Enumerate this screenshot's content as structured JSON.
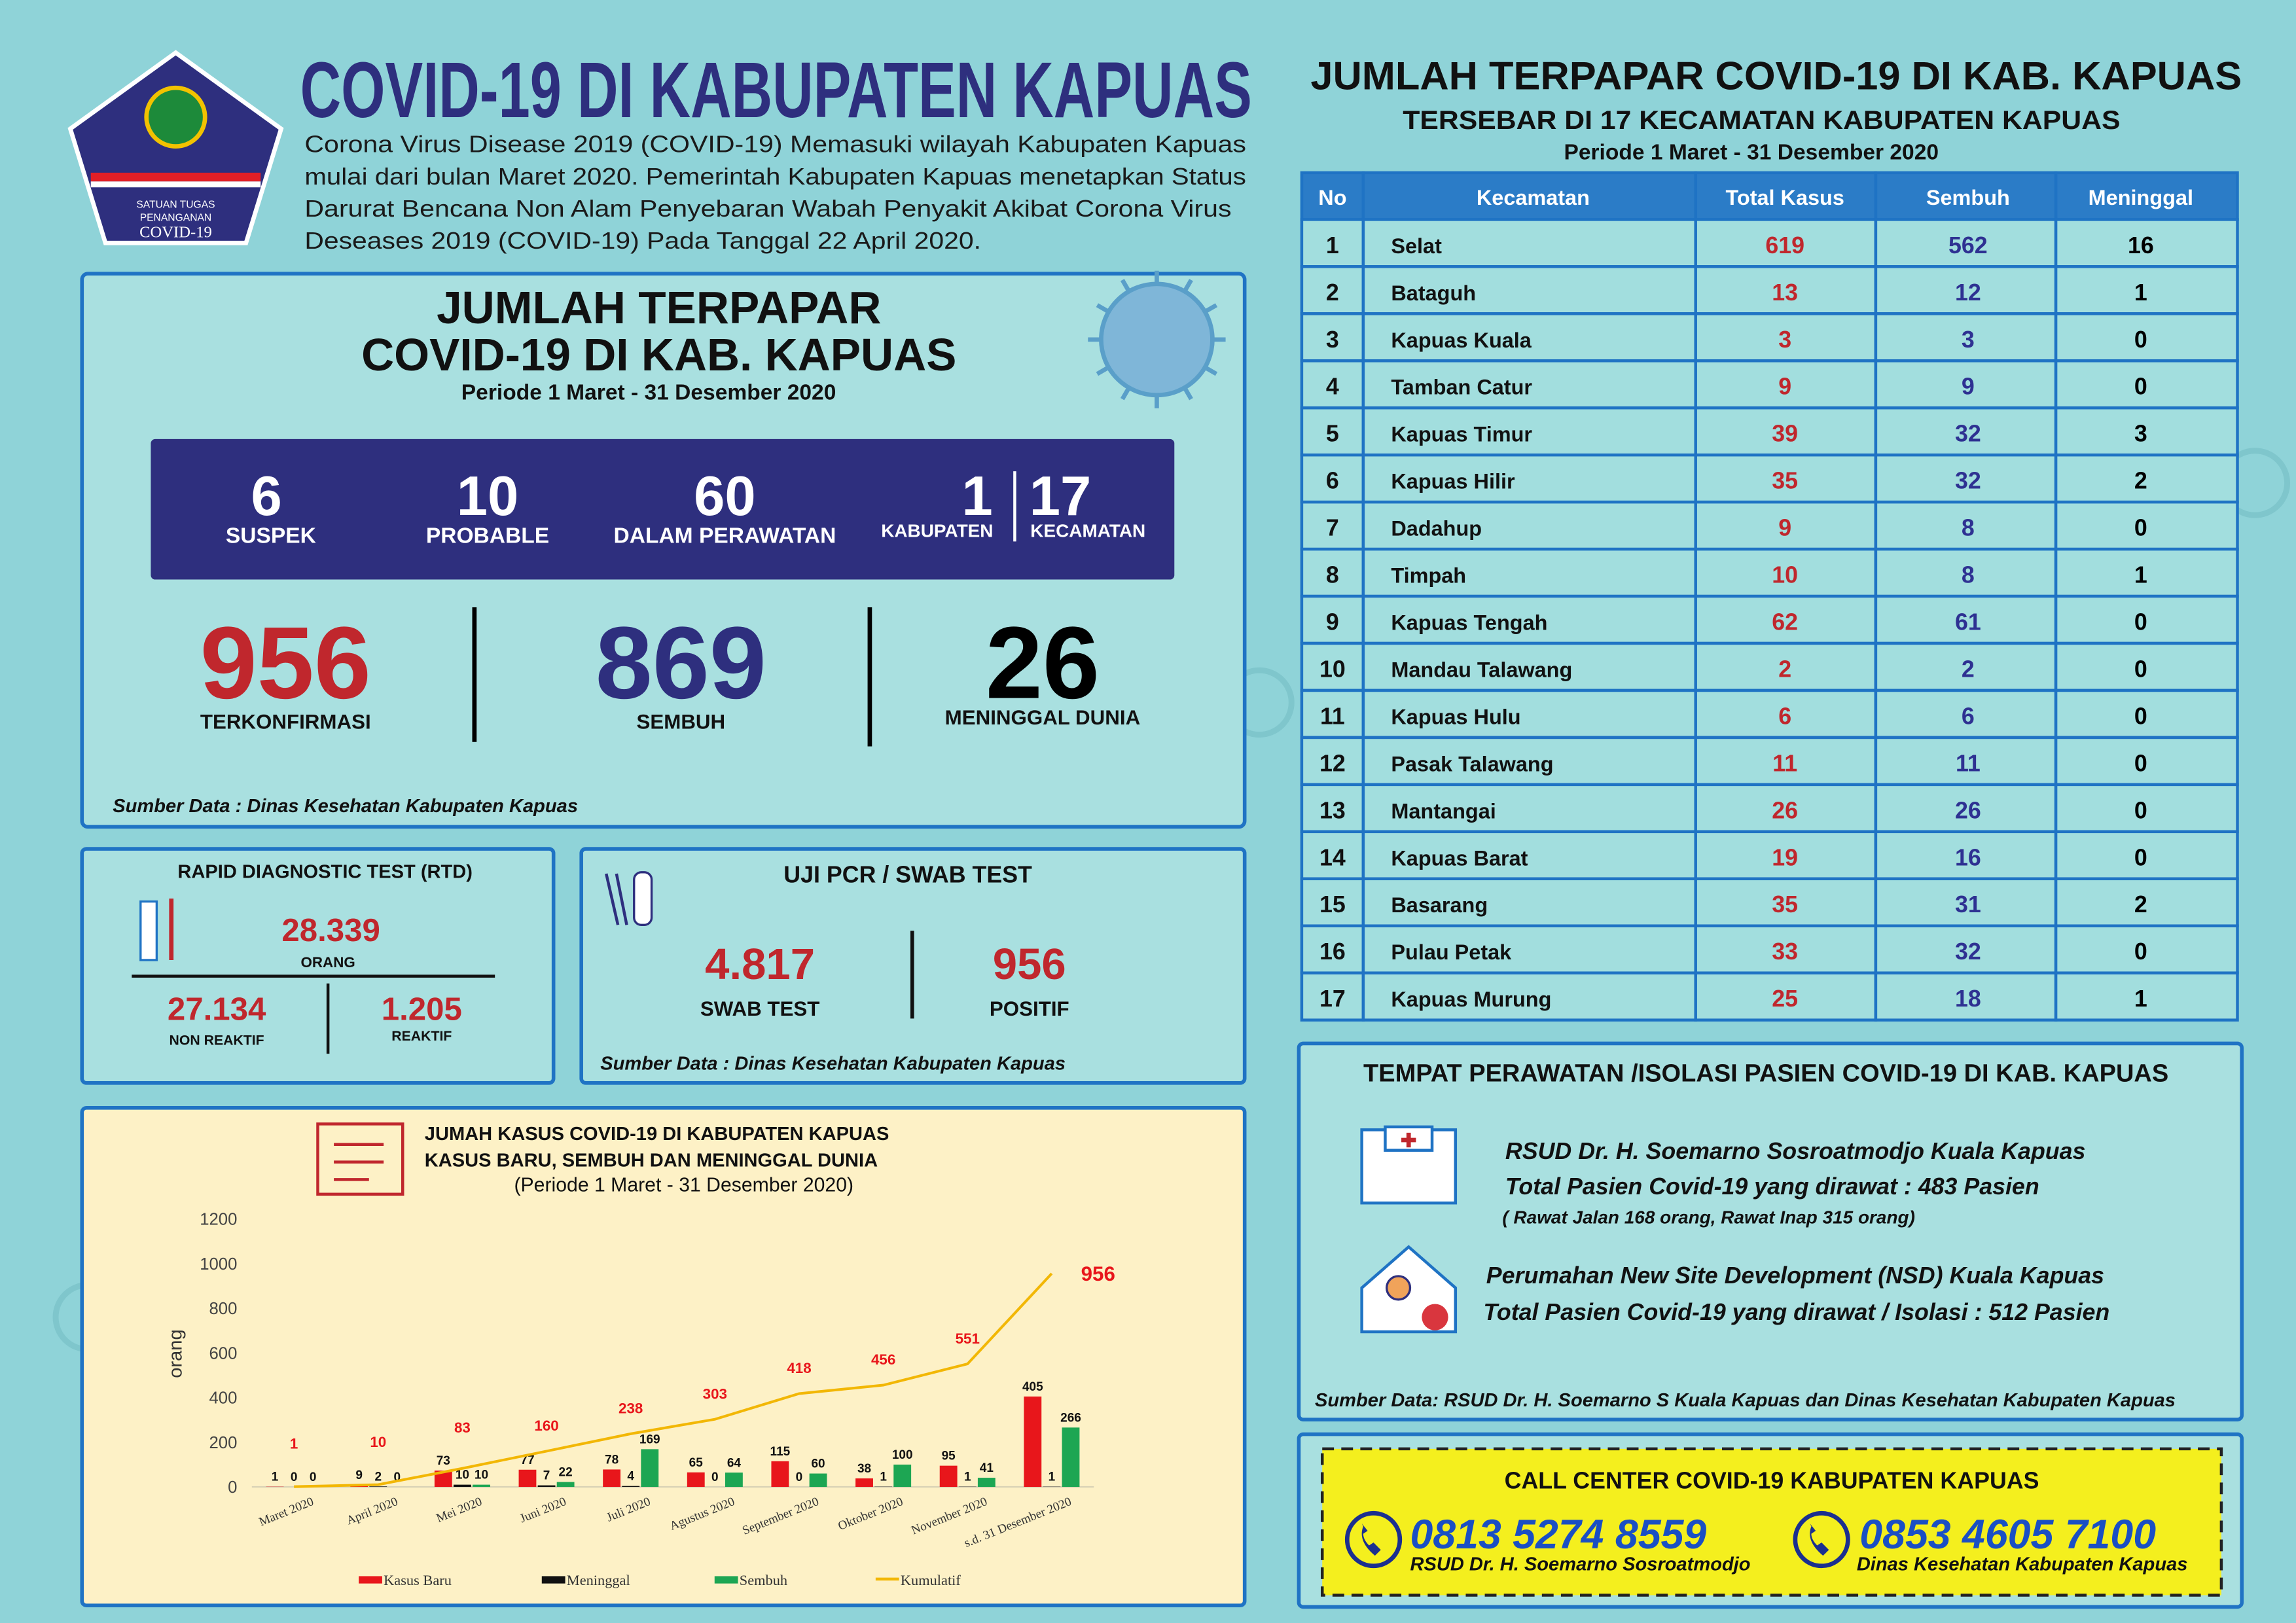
{
  "logo": {
    "lines": [
      "SATUAN TUGAS",
      "PENANGANAN",
      "COVID-19"
    ]
  },
  "header": {
    "title": "COVID-19 DI KABUPATEN KAPUAS",
    "intro": [
      "Corona Virus Disease 2019 (COVID-19) Memasuki wilayah Kabupaten Kapuas",
      "mulai dari bulan Maret 2020. Pemerintah Kabupaten Kapuas menetapkan Status",
      "Darurat Bencana Non Alam Penyebaran Wabah Penyakit Akibat Corona Virus",
      "Deseases 2019 (COVID-19) Pada Tanggal 22 April 2020."
    ]
  },
  "summary": {
    "title": [
      "JUMLAH TERPAPAR",
      "COVID-19 DI KAB. KAPUAS"
    ],
    "period": "Periode 1 Maret - 31 Desember 2020",
    "stats": [
      {
        "value": 6,
        "label": "SUSPEK"
      },
      {
        "value": 10,
        "label": "PROBABLE"
      },
      {
        "value": 60,
        "label": "DALAM PERAWATAN"
      },
      {
        "value": 1,
        "label": "KABUPATEN"
      },
      {
        "value": 17,
        "label": "KECAMATAN"
      }
    ],
    "totals": [
      {
        "value": 956,
        "label": "TERKONFIRMASI"
      },
      {
        "value": 869,
        "label": "SEMBUH"
      },
      {
        "value": 26,
        "label": "MENINGGAL DUNIA"
      }
    ],
    "source": "Sumber Data : Dinas Kesehatan Kabupaten Kapuas"
  },
  "rdt": {
    "title": "RAPID DIAGNOSTIC TEST (RTD)",
    "total": "28.339",
    "total_label": "ORANG",
    "non_reaktif": "27.134",
    "non_reaktif_label": "NON REAKTIF",
    "reaktif": "1.205",
    "reaktif_label": "REAKTIF"
  },
  "pcr": {
    "title": "UJI PCR / SWAB TEST",
    "swab": "4.817",
    "swab_label": "SWAB TEST",
    "positif": "956",
    "positif_label": "POSITIF",
    "source": "Sumber  Data : Dinas Kesehatan Kabupaten Kapuas"
  },
  "table": {
    "title": "JUMLAH TERPAPAR COVID-19 DI KAB. KAPUAS",
    "subtitle": "TERSEBAR DI 17 KECAMATAN KABUPATEN KAPUAS",
    "period": "Periode 1 Maret - 31 Desember 2020",
    "columns": [
      "No",
      "Kecamatan",
      "Total Kasus",
      "Sembuh",
      "Meninggal"
    ],
    "rows": [
      [
        1,
        "Selat",
        619,
        562,
        16
      ],
      [
        2,
        "Bataguh",
        13,
        12,
        1
      ],
      [
        3,
        "Kapuas Kuala",
        3,
        3,
        0
      ],
      [
        4,
        "Tamban Catur",
        9,
        9,
        0
      ],
      [
        5,
        "Kapuas Timur",
        39,
        32,
        3
      ],
      [
        6,
        "Kapuas Hilir",
        35,
        32,
        2
      ],
      [
        7,
        "Dadahup",
        9,
        8,
        0
      ],
      [
        8,
        "Timpah",
        10,
        8,
        1
      ],
      [
        9,
        "Kapuas Tengah",
        62,
        61,
        0
      ],
      [
        10,
        "Mandau Talawang",
        2,
        2,
        0
      ],
      [
        11,
        "Kapuas Hulu",
        6,
        6,
        0
      ],
      [
        12,
        "Pasak Talawang",
        11,
        11,
        0
      ],
      [
        13,
        "Mantangai",
        26,
        26,
        0
      ],
      [
        14,
        "Kapuas Barat",
        19,
        16,
        0
      ],
      [
        15,
        "Basarang",
        35,
        31,
        2
      ],
      [
        16,
        "Pulau Petak",
        33,
        32,
        0
      ],
      [
        17,
        "Kapuas Murung",
        25,
        18,
        1
      ]
    ]
  },
  "chart_data": {
    "type": "bar",
    "title": [
      "JUMAH KASUS COVID-19 DI KABUPATEN KAPUAS",
      "KASUS BARU, SEMBUH DAN MENINGGAL DUNIA"
    ],
    "subtitle": "(Periode 1 Maret - 31 Desember 2020)",
    "ylabel": "orang",
    "categories": [
      "Maret 2020",
      "April 2020",
      "Mei 2020",
      "Juni 2020",
      "Juli 2020",
      "Agustus 2020",
      "September 2020",
      "Oktober 2020",
      "November 2020",
      "s.d. 31 Desember 2020"
    ],
    "series": [
      {
        "name": "Kasus Baru",
        "color": "#e8161b",
        "values": [
          1,
          9,
          73,
          77,
          78,
          65,
          115,
          38,
          95,
          405
        ]
      },
      {
        "name": "Meninggal",
        "color": "#111111",
        "values": [
          0,
          2,
          10,
          7,
          4,
          0,
          0,
          1,
          1,
          1
        ]
      },
      {
        "name": "Sembuh",
        "color": "#1da653",
        "values": [
          0,
          0,
          10,
          22,
          169,
          64,
          60,
          100,
          41,
          266
        ]
      },
      {
        "name": "Kumulatif",
        "type": "line",
        "color": "#f2b705",
        "label_color": "#e8161b",
        "values": [
          1,
          10,
          83,
          160,
          238,
          303,
          418,
          456,
          551,
          956
        ]
      }
    ],
    "ylim": [
      0,
      1200
    ],
    "yticks": [
      0,
      200,
      400,
      600,
      800,
      1000,
      1200
    ],
    "grid": false
  },
  "treatment": {
    "title": "TEMPAT PERAWATAN /ISOLASI PASIEN COVID-19 DI KAB. KAPUAS",
    "places": [
      {
        "name": "RSUD Dr. H. Soemarno Sosroatmodjo Kuala Kapuas",
        "patients": "Total Pasien Covid-19 yang dirawat : 483 Pasien",
        "note": "( Rawat Jalan 168 orang, Rawat Inap 315 orang)"
      },
      {
        "name": "Perumahan New Site Development (NSD) Kuala Kapuas",
        "patients": "Total Pasien Covid-19 yang dirawat / Isolasi : 512 Pasien"
      }
    ],
    "source": "Sumber  Data: RSUD Dr. H. Soemarno S Kuala Kapuas dan Dinas Kesehatan Kabupaten Kapuas"
  },
  "call_center": {
    "title": "CALL CENTER COVID-19 KABUPATEN KAPUAS",
    "contacts": [
      {
        "phone": "0813 5274 8559",
        "name": "RSUD Dr. H. Soemarno Sosroatmodjo"
      },
      {
        "phone": "0853 4605 7100",
        "name": "Dinas Kesehatan Kabupaten Kapuas"
      }
    ]
  }
}
